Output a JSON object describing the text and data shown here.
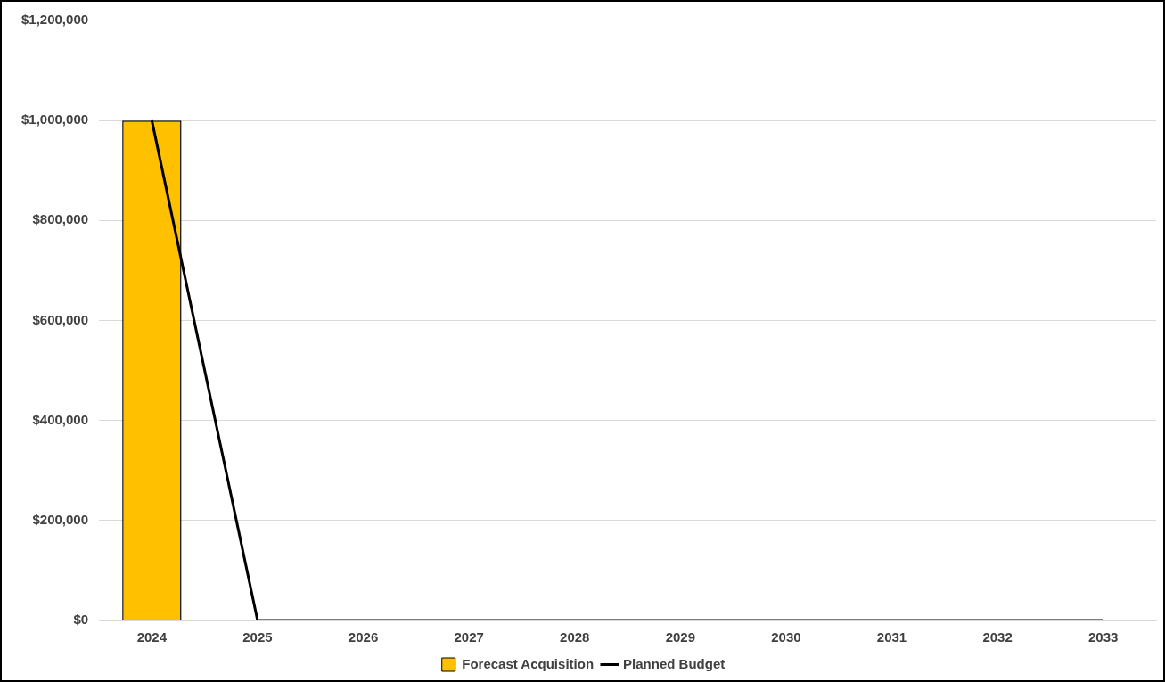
{
  "chart_data": {
    "type": "bar",
    "categories": [
      "2024",
      "2025",
      "2026",
      "2027",
      "2028",
      "2029",
      "2030",
      "2031",
      "2032",
      "2033"
    ],
    "series": [
      {
        "name": "Forecast Acquisition",
        "color": "#ffc000",
        "values": [
          1000000,
          0,
          0,
          0,
          0,
          0,
          0,
          0,
          0,
          0
        ]
      },
      {
        "name": "Planned Budget",
        "type": "line",
        "color": "#000000",
        "values": [
          1000000,
          0,
          0,
          0,
          0,
          0,
          0,
          0,
          0,
          0
        ]
      }
    ],
    "ylim": [
      0,
      1200000
    ],
    "yticks": [
      {
        "value": 0,
        "label": "$0"
      },
      {
        "value": 200000,
        "label": "$200,000"
      },
      {
        "value": 400000,
        "label": "$400,000"
      },
      {
        "value": 600000,
        "label": "$600,000"
      },
      {
        "value": 800000,
        "label": "$800,000"
      },
      {
        "value": 1000000,
        "label": "$1,000,000"
      },
      {
        "value": 1200000,
        "label": "$1,200,000"
      }
    ],
    "grid": "y",
    "legend": "bottom",
    "marker": "none",
    "line_style": "solid"
  }
}
